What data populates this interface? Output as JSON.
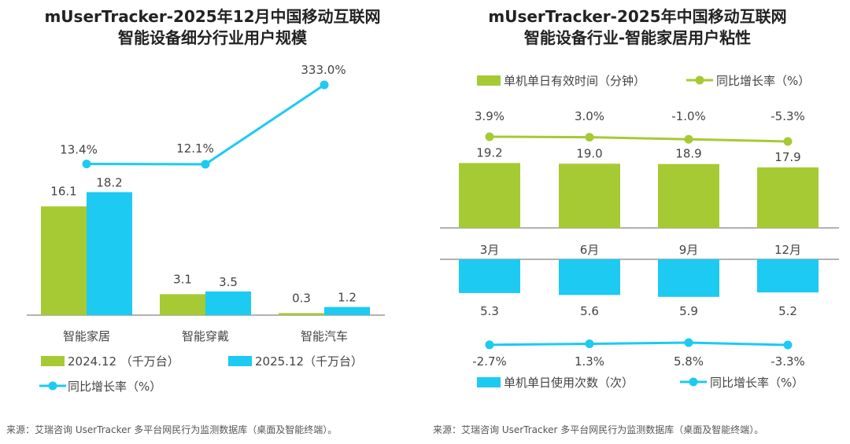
{
  "colors": {
    "green": "#A6CA34",
    "cyan": "#1CCAF2",
    "axis": "#666666"
  },
  "left_panel": {
    "title_line1": "mUserTracker-2025年12月中国移动互联网",
    "title_line2": "智能设备细分行业用户规模",
    "source": "来源：艾瑞咨询 UserTracker 多平台网民行为监测数据库（桌面及智能终端）。"
  },
  "right_panel": {
    "title_line1": "mUserTracker-2025年中国移动互联网",
    "title_line2": "智能设备行业-智能家居用户粘性",
    "source": "来源：艾瑞咨询 UserTracker 多平台网民行为监测数据库（桌面及智能终端）。"
  },
  "chart_data": [
    {
      "type": "bar",
      "title": "mUserTracker-2025年12月中国移动互联网智能设备细分行业用户规模",
      "categories": [
        "智能家居",
        "智能穿戴",
        "智能汽车"
      ],
      "series": [
        {
          "name": "2024.12 （千万台）",
          "values": [
            16.1,
            3.1,
            0.3
          ],
          "labels": [
            "16.1",
            "3.1",
            "0.3"
          ]
        },
        {
          "name": "2025.12（千万台）",
          "values": [
            18.2,
            3.5,
            1.2
          ],
          "labels": [
            "18.2",
            "3.5",
            "1.2"
          ]
        }
      ],
      "line_series": {
        "name": "同比增长率（%）",
        "values": [
          13.4,
          12.1,
          333.0
        ],
        "labels": [
          "13.4%",
          "12.1%",
          "333.0%"
        ]
      },
      "ylim": [
        0,
        20
      ],
      "line_ylim": [
        0,
        350
      ]
    },
    {
      "type": "bar",
      "title": "mUserTracker-2025年中国移动互联网智能设备行业-智能家居用户粘性",
      "categories": [
        "3月",
        "6月",
        "9月",
        "12月"
      ],
      "top": {
        "bar_series": {
          "name": "单机单日有效时间（分钟）",
          "values": [
            19.2,
            19.0,
            18.9,
            17.9
          ],
          "labels": [
            "19.2",
            "19.0",
            "18.9",
            "17.9"
          ]
        },
        "line_series": {
          "name": "同比增长率（%）",
          "values": [
            3.9,
            3.0,
            -1.0,
            -5.3
          ],
          "labels": [
            "3.9%",
            "3.0%",
            "-1.0%",
            "-5.3%"
          ]
        }
      },
      "bottom": {
        "bar_series": {
          "name": "单机单日使用次数（次）",
          "values": [
            5.3,
            5.6,
            5.9,
            5.2
          ],
          "labels": [
            "5.3",
            "5.6",
            "5.9",
            "5.2"
          ]
        },
        "line_series": {
          "name": "同比增长率（%）",
          "values": [
            -2.7,
            1.3,
            5.8,
            -3.3
          ],
          "labels": [
            "-2.7%",
            "1.3%",
            "5.8%",
            "-3.3%"
          ]
        }
      }
    }
  ]
}
